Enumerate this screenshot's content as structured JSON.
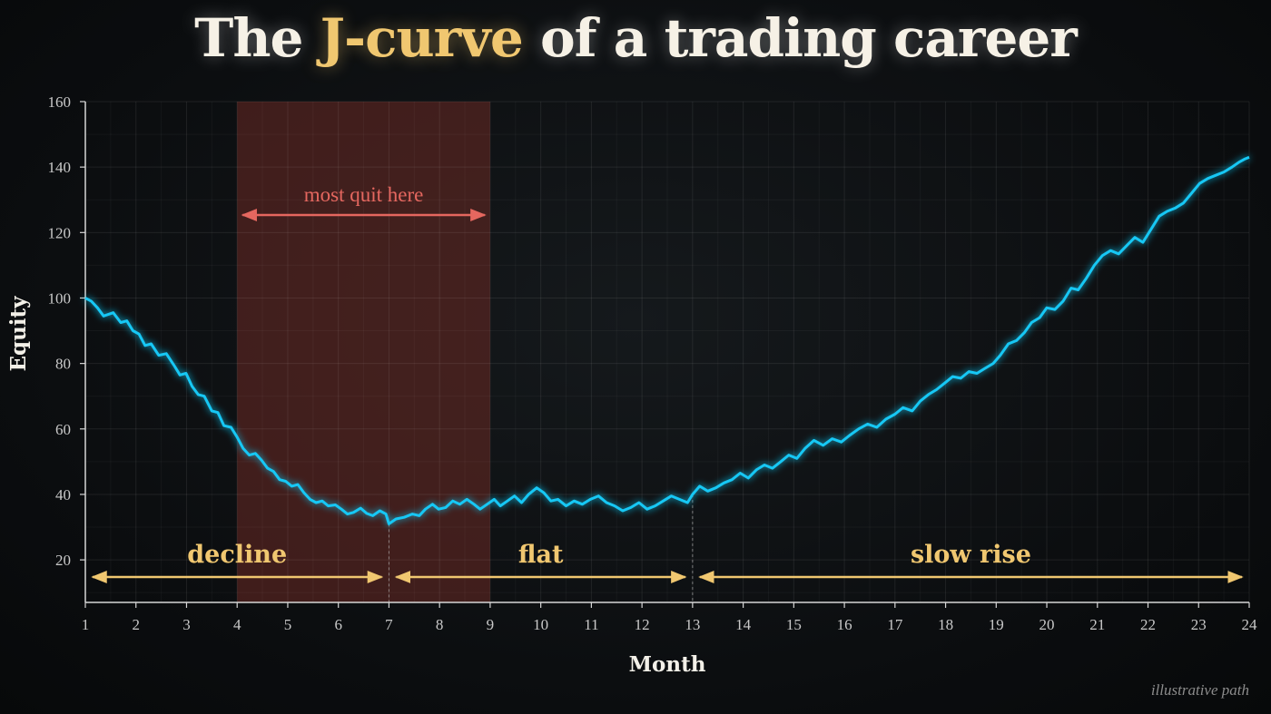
{
  "title": {
    "before": "The ",
    "highlight": "J-curve",
    "after": " of a trading career"
  },
  "note": "illustrative path",
  "colors": {
    "line": "#19c8f5",
    "highlight": "#f0c770",
    "quit": "#e5675f",
    "quit_band": "#6b2a25"
  },
  "chart_data": {
    "type": "line",
    "xlabel": "Month",
    "ylabel": "Equity",
    "xlim": [
      1,
      24
    ],
    "ylim": [
      7,
      160
    ],
    "xticks": [
      1,
      2,
      3,
      4,
      5,
      6,
      7,
      8,
      9,
      10,
      11,
      12,
      13,
      14,
      15,
      16,
      17,
      18,
      19,
      20,
      21,
      22,
      23,
      24
    ],
    "yticks": [
      20,
      40,
      60,
      80,
      100,
      120,
      140,
      160
    ],
    "grid": true,
    "series": [
      {
        "values": [
          [
            1.0,
            100.0
          ],
          [
            1.12,
            99.0
          ],
          [
            1.24,
            97.0
          ],
          [
            1.36,
            94.5
          ],
          [
            1.55,
            95.5
          ],
          [
            1.7,
            92.5
          ],
          [
            1.82,
            93.0
          ],
          [
            1.94,
            90.0
          ],
          [
            2.06,
            89.0
          ],
          [
            2.18,
            85.5
          ],
          [
            2.3,
            86.0
          ],
          [
            2.45,
            82.5
          ],
          [
            2.6,
            83.0
          ],
          [
            2.75,
            79.5
          ],
          [
            2.87,
            76.5
          ],
          [
            2.99,
            77.0
          ],
          [
            3.11,
            73.0
          ],
          [
            3.23,
            70.5
          ],
          [
            3.35,
            70.0
          ],
          [
            3.5,
            65.5
          ],
          [
            3.62,
            65.0
          ],
          [
            3.74,
            61.0
          ],
          [
            3.88,
            60.5
          ],
          [
            4.0,
            57.5
          ],
          [
            4.12,
            54.0
          ],
          [
            4.24,
            52.0
          ],
          [
            4.36,
            52.5
          ],
          [
            4.48,
            50.5
          ],
          [
            4.6,
            48.0
          ],
          [
            4.72,
            47.0
          ],
          [
            4.84,
            44.5
          ],
          [
            4.96,
            44.0
          ],
          [
            5.08,
            42.5
          ],
          [
            5.2,
            43.0
          ],
          [
            5.32,
            40.5
          ],
          [
            5.44,
            38.5
          ],
          [
            5.56,
            37.5
          ],
          [
            5.68,
            38.0
          ],
          [
            5.8,
            36.5
          ],
          [
            5.94,
            36.8
          ],
          [
            6.06,
            35.5
          ],
          [
            6.18,
            34.0
          ],
          [
            6.3,
            34.5
          ],
          [
            6.44,
            35.8
          ],
          [
            6.56,
            34.2
          ],
          [
            6.68,
            33.5
          ],
          [
            6.82,
            35.0
          ],
          [
            6.94,
            34.0
          ],
          [
            7.0,
            31.0
          ],
          [
            7.14,
            32.5
          ],
          [
            7.3,
            33.0
          ],
          [
            7.46,
            34.0
          ],
          [
            7.6,
            33.5
          ],
          [
            7.72,
            35.5
          ],
          [
            7.86,
            37.0
          ],
          [
            7.98,
            35.5
          ],
          [
            8.12,
            36.0
          ],
          [
            8.26,
            38.0
          ],
          [
            8.4,
            37.0
          ],
          [
            8.54,
            38.5
          ],
          [
            8.68,
            37.0
          ],
          [
            8.8,
            35.5
          ],
          [
            8.94,
            37.0
          ],
          [
            9.08,
            38.5
          ],
          [
            9.2,
            36.5
          ],
          [
            9.34,
            38.0
          ],
          [
            9.48,
            39.5
          ],
          [
            9.62,
            37.5
          ],
          [
            9.76,
            40.0
          ],
          [
            9.92,
            42.0
          ],
          [
            10.06,
            40.5
          ],
          [
            10.2,
            38.0
          ],
          [
            10.34,
            38.5
          ],
          [
            10.5,
            36.5
          ],
          [
            10.66,
            38.0
          ],
          [
            10.82,
            37.0
          ],
          [
            10.98,
            38.5
          ],
          [
            11.14,
            39.5
          ],
          [
            11.3,
            37.5
          ],
          [
            11.46,
            36.5
          ],
          [
            11.62,
            35.0
          ],
          [
            11.78,
            36.0
          ],
          [
            11.94,
            37.5
          ],
          [
            12.1,
            35.5
          ],
          [
            12.26,
            36.5
          ],
          [
            12.42,
            38.0
          ],
          [
            12.58,
            39.5
          ],
          [
            12.74,
            38.5
          ],
          [
            12.9,
            37.5
          ],
          [
            13.0,
            40.0
          ],
          [
            13.14,
            42.5
          ],
          [
            13.3,
            41.0
          ],
          [
            13.46,
            42.0
          ],
          [
            13.62,
            43.5
          ],
          [
            13.78,
            44.5
          ],
          [
            13.94,
            46.5
          ],
          [
            14.1,
            45.0
          ],
          [
            14.26,
            47.5
          ],
          [
            14.42,
            49.0
          ],
          [
            14.58,
            48.0
          ],
          [
            14.74,
            50.0
          ],
          [
            14.9,
            52.0
          ],
          [
            15.06,
            51.0
          ],
          [
            15.22,
            54.0
          ],
          [
            15.4,
            56.5
          ],
          [
            15.58,
            55.0
          ],
          [
            15.76,
            57.0
          ],
          [
            15.94,
            56.0
          ],
          [
            16.1,
            58.0
          ],
          [
            16.28,
            60.0
          ],
          [
            16.46,
            61.5
          ],
          [
            16.64,
            60.5
          ],
          [
            16.82,
            63.0
          ],
          [
            17.0,
            64.5
          ],
          [
            17.16,
            66.5
          ],
          [
            17.34,
            65.5
          ],
          [
            17.5,
            68.5
          ],
          [
            17.66,
            70.5
          ],
          [
            17.82,
            72.0
          ],
          [
            17.98,
            74.0
          ],
          [
            18.14,
            76.0
          ],
          [
            18.3,
            75.5
          ],
          [
            18.46,
            77.5
          ],
          [
            18.62,
            77.0
          ],
          [
            18.78,
            78.5
          ],
          [
            18.94,
            80.0
          ],
          [
            19.08,
            82.5
          ],
          [
            19.24,
            86.0
          ],
          [
            19.4,
            87.0
          ],
          [
            19.56,
            89.5
          ],
          [
            19.7,
            92.5
          ],
          [
            19.86,
            94.0
          ],
          [
            20.0,
            97.0
          ],
          [
            20.16,
            96.5
          ],
          [
            20.32,
            99.0
          ],
          [
            20.48,
            103.0
          ],
          [
            20.62,
            102.5
          ],
          [
            20.78,
            106.0
          ],
          [
            20.94,
            110.0
          ],
          [
            21.1,
            113.0
          ],
          [
            21.26,
            114.5
          ],
          [
            21.42,
            113.5
          ],
          [
            21.58,
            116.0
          ],
          [
            21.74,
            118.5
          ],
          [
            21.9,
            117.0
          ],
          [
            22.06,
            121.0
          ],
          [
            22.22,
            125.0
          ],
          [
            22.38,
            126.5
          ],
          [
            22.54,
            127.5
          ],
          [
            22.7,
            129.0
          ],
          [
            22.86,
            132.0
          ],
          [
            23.02,
            135.0
          ],
          [
            23.18,
            136.5
          ],
          [
            23.34,
            137.5
          ],
          [
            23.5,
            138.5
          ],
          [
            23.66,
            140.0
          ],
          [
            23.8,
            141.5
          ],
          [
            23.92,
            142.5
          ],
          [
            24.0,
            143.0
          ]
        ]
      }
    ],
    "shaded_region": {
      "x_start": 4,
      "x_end": 9,
      "label": "most quit here"
    },
    "phases": [
      {
        "label": "decline",
        "x_start": 1,
        "x_end": 7
      },
      {
        "label": "flat",
        "x_start": 7,
        "x_end": 13
      },
      {
        "label": "slow rise",
        "x_start": 13,
        "x_end": 24
      }
    ],
    "phase_boundaries": [
      7,
      13
    ]
  }
}
